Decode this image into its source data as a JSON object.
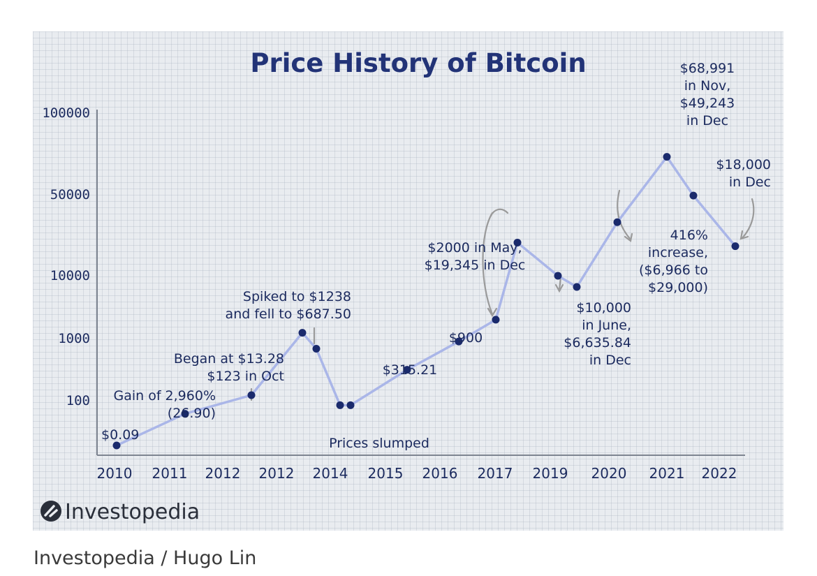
{
  "chart_data": {
    "type": "line",
    "title": "Price History of Bitcoin",
    "y_scale": "log (irregular tick spacing)",
    "grid": true,
    "legend": "none",
    "colors": {
      "line": "#aab6e8",
      "point": "#1a2a6c",
      "text": "#1b2a5e",
      "title": "#223377",
      "arrow": "#9a9a9a"
    },
    "x_ticks": [
      "2010",
      "2011",
      "2012",
      "2012",
      "2014",
      "2015",
      "2016",
      "2017",
      "2019",
      "2020",
      "2021",
      "2022"
    ],
    "y_ticks": [
      "100000",
      "50000",
      "10000",
      "1000",
      "100"
    ],
    "series": [
      {
        "values": [
          0.09,
          13,
          123,
          1238,
          687.5,
          50,
          50,
          315.21,
          900,
          2000,
          19345,
          10000,
          6635.84,
          29000,
          68991,
          49243,
          18000
        ]
      }
    ],
    "annotations": [
      {
        "text": [
          "$0.09"
        ]
      },
      {
        "text": [
          "Gain of 2,960%",
          "(26.90)"
        ]
      },
      {
        "text": [
          "Began at $13.28",
          "$123 in Oct"
        ]
      },
      {
        "text": [
          "Spiked to $1238",
          "and fell to $687.50"
        ]
      },
      {
        "text": [
          "Prices slumped"
        ]
      },
      {
        "text": [
          "$315.21"
        ]
      },
      {
        "text": [
          "$900"
        ]
      },
      {
        "text": [
          "$2000 in May,",
          "$19,345 in Dec"
        ]
      },
      {
        "text": [
          "$10,000",
          "in June,",
          "$6,635.84",
          "in Dec"
        ]
      },
      {
        "text": [
          "416%",
          "increase,",
          "($6,966 to",
          "$29,000)"
        ]
      },
      {
        "text": [
          "$68,991",
          "in Nov,",
          "$49,243",
          "in Dec"
        ]
      },
      {
        "text": [
          "$18,000",
          "in Dec"
        ]
      }
    ]
  },
  "brand": {
    "name": "Investopedia",
    "icon": "investopedia-logo-icon"
  },
  "credit": "Investopedia / Hugo Lin"
}
